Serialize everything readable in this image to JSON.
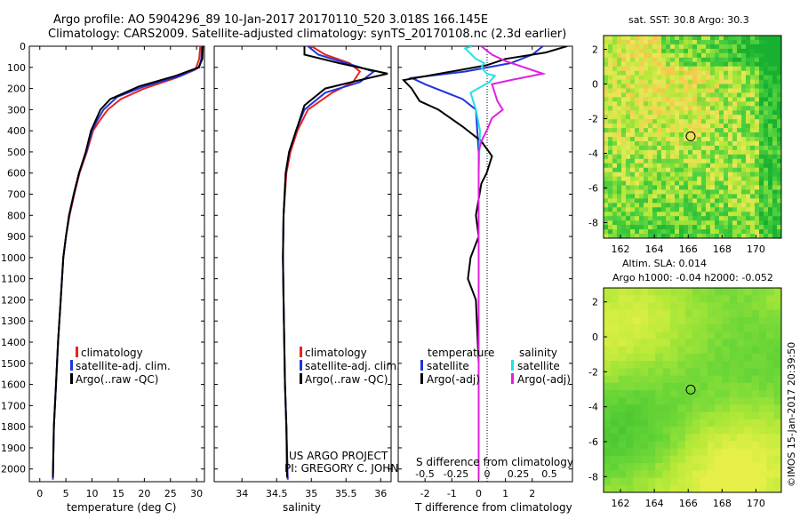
{
  "header": {
    "line1": "Argo profile: AO 5904296_89 10-Jan-2017 20170110_520 3.018S 166.145E",
    "line2": "Climatology: CARS2009. Satellite-adjusted climatology: synTS_20170108.nc (2.3d earlier)"
  },
  "footer": {
    "project": "US ARGO PROJECT",
    "pi": "PI: GREGORY C. JOHNSON",
    "credit": "©IMOS 15-Jan-2017 20:39:50"
  },
  "colors": {
    "climatology": "#e8231e",
    "satellite": "#2233dd",
    "argo": "#000000",
    "sal_satellite": "#22e0e8",
    "sal_argo": "#e020e0"
  },
  "chart_data": [
    {
      "type": "line",
      "xlabel": "temperature (deg C)",
      "ylabel": "",
      "xlim": [
        -2,
        31.5
      ],
      "ylim": [
        2060,
        0
      ],
      "xticks": [
        0,
        5,
        10,
        15,
        20,
        25,
        30
      ],
      "yticks": [
        0,
        100,
        200,
        300,
        400,
        500,
        600,
        700,
        800,
        900,
        1000,
        1100,
        1200,
        1300,
        1400,
        1500,
        1600,
        1700,
        1800,
        1900,
        2000
      ],
      "legend": [
        "climatology",
        "satellite-adj. clim.",
        "Argo(..raw -QC)"
      ],
      "series": [
        {
          "name": "climatology",
          "color": "#e8231e",
          "points": [
            [
              30.7,
              0
            ],
            [
              30.5,
              60
            ],
            [
              29.8,
              110
            ],
            [
              26,
              150
            ],
            [
              20,
              200
            ],
            [
              15.5,
              250
            ],
            [
              13,
              300
            ],
            [
              11.5,
              350
            ],
            [
              10.2,
              400
            ],
            [
              9,
              500
            ],
            [
              7.6,
              600
            ],
            [
              6.6,
              700
            ],
            [
              5.7,
              800
            ],
            [
              5.0,
              900
            ],
            [
              4.5,
              1000
            ],
            [
              4.0,
              1200
            ],
            [
              3.5,
              1400
            ],
            [
              3.1,
              1600
            ],
            [
              2.7,
              1800
            ],
            [
              2.5,
              2050
            ]
          ]
        },
        {
          "name": "satellite-adj. clim.",
          "color": "#2233dd",
          "points": [
            [
              31.0,
              0
            ],
            [
              30.9,
              60
            ],
            [
              30.5,
              100
            ],
            [
              27,
              140
            ],
            [
              20,
              190
            ],
            [
              14.8,
              240
            ],
            [
              12.2,
              300
            ],
            [
              11,
              350
            ],
            [
              10,
              400
            ],
            [
              8.9,
              500
            ],
            [
              7.5,
              600
            ],
            [
              6.5,
              700
            ],
            [
              5.6,
              800
            ],
            [
              5.0,
              900
            ],
            [
              4.5,
              1000
            ],
            [
              4.0,
              1200
            ],
            [
              3.5,
              1400
            ],
            [
              3.1,
              1600
            ],
            [
              2.7,
              1800
            ],
            [
              2.5,
              2050
            ]
          ]
        },
        {
          "name": "Argo(..raw -QC)",
          "color": "#000000",
          "points": [
            [
              31.2,
              0
            ],
            [
              31.1,
              60
            ],
            [
              30.4,
              100
            ],
            [
              26,
              140
            ],
            [
              19,
              190
            ],
            [
              13.5,
              250
            ],
            [
              11.6,
              300
            ],
            [
              10.7,
              350
            ],
            [
              9.8,
              400
            ],
            [
              8.8,
              500
            ],
            [
              7.5,
              600
            ],
            [
              6.5,
              700
            ],
            [
              5.6,
              800
            ],
            [
              5.0,
              900
            ],
            [
              4.5,
              1000
            ],
            [
              4.0,
              1200
            ],
            [
              3.5,
              1400
            ],
            [
              3.1,
              1600
            ],
            [
              2.7,
              1800
            ],
            [
              2.5,
              2040
            ]
          ]
        }
      ]
    },
    {
      "type": "line",
      "xlabel": "salinity",
      "xlim": [
        33.6,
        36.15
      ],
      "ylim": [
        2060,
        0
      ],
      "xticks": [
        34,
        34.5,
        35,
        35.5,
        36
      ],
      "legend": [
        "climatology",
        "satellite-adj. clim.",
        "Argo(..raw -QC)"
      ],
      "series": [
        {
          "name": "climatology",
          "color": "#e8231e",
          "points": [
            [
              35.0,
              0
            ],
            [
              35.2,
              40
            ],
            [
              35.55,
              80
            ],
            [
              35.7,
              120
            ],
            [
              35.6,
              170
            ],
            [
              35.3,
              220
            ],
            [
              34.95,
              300
            ],
            [
              34.8,
              400
            ],
            [
              34.7,
              500
            ],
            [
              34.64,
              600
            ],
            [
              34.6,
              800
            ],
            [
              34.59,
              1000
            ],
            [
              34.6,
              1200
            ],
            [
              34.61,
              1400
            ],
            [
              34.62,
              1600
            ],
            [
              34.64,
              1800
            ],
            [
              34.66,
              2050
            ]
          ]
        },
        {
          "name": "satellite-adj. clim.",
          "color": "#2233dd",
          "points": [
            [
              34.95,
              0
            ],
            [
              35.1,
              40
            ],
            [
              35.5,
              80
            ],
            [
              35.9,
              120
            ],
            [
              35.7,
              170
            ],
            [
              35.2,
              220
            ],
            [
              34.9,
              300
            ],
            [
              34.78,
              400
            ],
            [
              34.68,
              500
            ],
            [
              34.63,
              600
            ],
            [
              34.6,
              800
            ],
            [
              34.59,
              1000
            ],
            [
              34.6,
              1200
            ],
            [
              34.61,
              1400
            ],
            [
              34.62,
              1600
            ],
            [
              34.64,
              1800
            ],
            [
              34.66,
              2050
            ]
          ]
        },
        {
          "name": "Argo(..raw -QC)",
          "color": "#000000",
          "points": [
            [
              34.9,
              0
            ],
            [
              34.9,
              40
            ],
            [
              35.4,
              80
            ],
            [
              36.1,
              130
            ],
            [
              35.7,
              160
            ],
            [
              35.2,
              200
            ],
            [
              34.9,
              280
            ],
            [
              34.78,
              400
            ],
            [
              34.68,
              500
            ],
            [
              34.63,
              600
            ],
            [
              34.6,
              800
            ],
            [
              34.59,
              1000
            ],
            [
              34.6,
              1200
            ],
            [
              34.61,
              1400
            ],
            [
              34.62,
              1600
            ],
            [
              34.64,
              1800
            ],
            [
              34.65,
              2040
            ]
          ]
        }
      ]
    },
    {
      "type": "line",
      "xlabel": "T difference from climatology",
      "top_label": "S difference from climatology",
      "xlim": [
        -3,
        3.5
      ],
      "ylim": [
        2060,
        0
      ],
      "xticks_T": [
        -2,
        -1,
        0,
        1,
        2
      ],
      "xticks_S": [
        "-0.5",
        "-0.25",
        "0",
        "0.25",
        "0.5"
      ],
      "legend_temperature": {
        "title": "temperature",
        "items": [
          "satellite",
          "Argo(-adj)"
        ]
      },
      "legend_salinity": {
        "title": "salinity",
        "items": [
          "satellite",
          "Argo(-adj)"
        ]
      },
      "series": [
        {
          "name": "T satellite",
          "color": "#2233dd",
          "points": [
            [
              2.4,
              0
            ],
            [
              2.0,
              40
            ],
            [
              1.2,
              80
            ],
            [
              -0.5,
              120
            ],
            [
              -2.5,
              150
            ],
            [
              -2.0,
              180
            ],
            [
              -0.6,
              250
            ],
            [
              -0.1,
              300
            ],
            [
              0,
              500
            ],
            [
              0,
              2050
            ]
          ]
        },
        {
          "name": "T Argo(-adj)",
          "color": "#000000",
          "points": [
            [
              3.3,
              0
            ],
            [
              2.5,
              30
            ],
            [
              1.0,
              60
            ],
            [
              0.3,
              90
            ],
            [
              -2.8,
              160
            ],
            [
              -2.5,
              200
            ],
            [
              -2.2,
              260
            ],
            [
              -1.5,
              300
            ],
            [
              -0.6,
              380
            ],
            [
              0.1,
              450
            ],
            [
              0.5,
              520
            ],
            [
              0.3,
              600
            ],
            [
              0.1,
              650
            ],
            [
              -0.1,
              800
            ],
            [
              0,
              900
            ],
            [
              -0.3,
              1000
            ],
            [
              -0.4,
              1100
            ],
            [
              -0.1,
              1200
            ],
            [
              0,
              1500
            ],
            [
              0,
              2050
            ]
          ]
        },
        {
          "name": "S satellite",
          "color": "#22e0e8",
          "points": [
            [
              -0.25,
              0
            ],
            [
              -0.5,
              10
            ],
            [
              -0.1,
              60
            ],
            [
              0.2,
              80
            ],
            [
              0.1,
              100
            ],
            [
              0.3,
              130
            ],
            [
              0.6,
              140
            ],
            [
              0.4,
              170
            ],
            [
              -0.3,
              220
            ],
            [
              -0.1,
              300
            ],
            [
              0.05,
              400
            ],
            [
              0,
              600
            ],
            [
              0,
              2050
            ]
          ]
        },
        {
          "name": "S Argo(-adj)",
          "color": "#e020e0",
          "points": [
            [
              0.1,
              0
            ],
            [
              0.5,
              40
            ],
            [
              1.0,
              70
            ],
            [
              2.4,
              130
            ],
            [
              1.2,
              160
            ],
            [
              0.5,
              180
            ],
            [
              0.7,
              260
            ],
            [
              0.9,
              300
            ],
            [
              0.5,
              340
            ],
            [
              0.3,
              400
            ],
            [
              0.1,
              450
            ],
            [
              0,
              500
            ],
            [
              0,
              2050
            ]
          ]
        }
      ]
    },
    {
      "type": "heatmap",
      "title": "sat. SST: 30.8 Argo: 30.3",
      "xlim": [
        161,
        171.5
      ],
      "ylim": [
        -8.9,
        2.8
      ],
      "xticks": [
        162,
        164,
        166,
        168,
        170
      ],
      "yticks": [
        2,
        0,
        -2,
        -4,
        -6,
        -8
      ],
      "marker": [
        166.145,
        -3.018
      ]
    },
    {
      "type": "heatmap",
      "title": "Altim. SLA: 0.014",
      "subtitle": "Argo h1000: -0.04 h2000: -0.052",
      "xlim": [
        161,
        171.5
      ],
      "ylim": [
        -8.9,
        2.8
      ],
      "xticks": [
        162,
        164,
        166,
        168,
        170
      ],
      "yticks": [
        2,
        0,
        -2,
        -4,
        -6,
        -8
      ],
      "marker": [
        166.145,
        -3.018
      ]
    }
  ]
}
